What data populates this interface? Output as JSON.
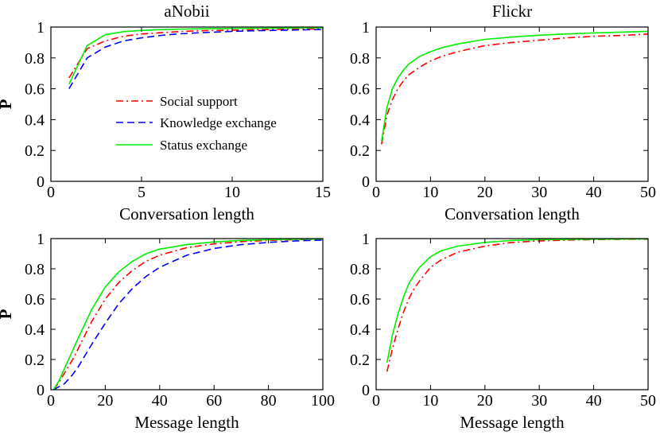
{
  "chart_data": [
    {
      "type": "line",
      "title": "aNobii",
      "xlabel": "Conversation length",
      "ylabel": "P",
      "xlim": [
        0,
        15
      ],
      "ylim": [
        0,
        1
      ],
      "xticks": [
        0,
        5,
        10,
        15
      ],
      "yticks": [
        0,
        0.2,
        0.4,
        0.6,
        0.8,
        1
      ],
      "ytick_labels": [
        "0",
        "0.2",
        "0.4",
        "0.6",
        "0.8",
        "1"
      ],
      "legend_position": "center",
      "series": [
        {
          "name": "Social support",
          "color": "#ff0000",
          "style": "dashdot",
          "x": [
            1,
            2,
            3,
            4,
            5,
            6,
            7,
            8,
            9,
            10,
            11,
            12,
            13,
            14,
            15
          ],
          "y": [
            0.67,
            0.86,
            0.91,
            0.94,
            0.955,
            0.963,
            0.97,
            0.975,
            0.978,
            0.98,
            0.982,
            0.984,
            0.986,
            0.987,
            0.988
          ]
        },
        {
          "name": "Knowledge exchange",
          "color": "#0000ff",
          "style": "dashed",
          "x": [
            1,
            2,
            3,
            4,
            5,
            6,
            7,
            8,
            9,
            10,
            11,
            12,
            13,
            14,
            15
          ],
          "y": [
            0.6,
            0.8,
            0.87,
            0.91,
            0.93,
            0.945,
            0.955,
            0.962,
            0.967,
            0.972,
            0.975,
            0.978,
            0.98,
            0.982,
            0.984
          ]
        },
        {
          "name": "Status exchange",
          "color": "#00ee00",
          "style": "solid",
          "x": [
            1,
            2,
            3,
            4,
            5,
            6,
            7,
            8,
            9,
            10,
            11,
            12,
            13,
            14,
            15
          ],
          "y": [
            0.63,
            0.88,
            0.95,
            0.97,
            0.978,
            0.983,
            0.986,
            0.988,
            0.99,
            0.991,
            0.992,
            0.993,
            0.994,
            0.995,
            0.995
          ]
        }
      ]
    },
    {
      "type": "line",
      "title": "Flickr",
      "xlabel": "Conversation length",
      "ylabel": "",
      "xlim": [
        0,
        50
      ],
      "ylim": [
        0,
        1
      ],
      "xticks": [
        0,
        10,
        20,
        30,
        40,
        50
      ],
      "yticks": [
        0,
        0.2,
        0.4,
        0.6,
        0.8,
        1
      ],
      "ytick_labels": [
        "0",
        "0.2",
        "0.4",
        "0.6",
        "0.8",
        "1"
      ],
      "series": [
        {
          "name": "Social support",
          "color": "#ff0000",
          "style": "dashdot",
          "x": [
            1,
            2,
            3,
            4,
            5,
            6,
            8,
            10,
            12,
            15,
            20,
            25,
            30,
            35,
            40,
            45,
            50
          ],
          "y": [
            0.24,
            0.43,
            0.53,
            0.6,
            0.65,
            0.69,
            0.74,
            0.78,
            0.81,
            0.84,
            0.88,
            0.9,
            0.915,
            0.93,
            0.94,
            0.945,
            0.955
          ]
        },
        {
          "name": "Knowledge exchange",
          "color": "#0000ff",
          "style": "dashed",
          "x": [],
          "y": []
        },
        {
          "name": "Status exchange",
          "color": "#00ee00",
          "style": "solid",
          "x": [
            1,
            2,
            3,
            4,
            5,
            6,
            8,
            10,
            12,
            15,
            20,
            25,
            30,
            35,
            40,
            45,
            50
          ],
          "y": [
            0.26,
            0.48,
            0.6,
            0.67,
            0.72,
            0.76,
            0.81,
            0.84,
            0.865,
            0.89,
            0.92,
            0.935,
            0.947,
            0.955,
            0.962,
            0.967,
            0.972
          ]
        }
      ]
    },
    {
      "type": "line",
      "title": "",
      "xlabel": "Message length",
      "ylabel": "P",
      "xlim": [
        0,
        100
      ],
      "ylim": [
        0,
        1
      ],
      "xticks": [
        0,
        20,
        40,
        60,
        80,
        100
      ],
      "yticks": [
        0,
        0.2,
        0.4,
        0.6,
        0.8,
        1
      ],
      "ytick_labels": [
        "0",
        "0.2",
        "0.4",
        "0.6",
        "0.8",
        "1"
      ],
      "series": [
        {
          "name": "Social support",
          "color": "#ff0000",
          "style": "dashdot",
          "x": [
            1,
            3,
            5,
            8,
            10,
            15,
            20,
            25,
            30,
            35,
            40,
            50,
            60,
            70,
            80,
            90,
            100
          ],
          "y": [
            0.0,
            0.05,
            0.11,
            0.2,
            0.27,
            0.45,
            0.6,
            0.71,
            0.79,
            0.85,
            0.89,
            0.94,
            0.965,
            0.98,
            0.988,
            0.993,
            0.996
          ]
        },
        {
          "name": "Knowledge exchange",
          "color": "#0000ff",
          "style": "dashed",
          "x": [
            1,
            3,
            5,
            8,
            10,
            15,
            20,
            25,
            30,
            35,
            40,
            50,
            60,
            70,
            80,
            90,
            100
          ],
          "y": [
            0.0,
            0.02,
            0.04,
            0.1,
            0.15,
            0.3,
            0.44,
            0.57,
            0.67,
            0.75,
            0.81,
            0.89,
            0.935,
            0.96,
            0.975,
            0.985,
            0.99
          ]
        },
        {
          "name": "Status exchange",
          "color": "#00ee00",
          "style": "solid",
          "x": [
            1,
            3,
            5,
            8,
            10,
            15,
            20,
            25,
            30,
            35,
            40,
            50,
            60,
            70,
            80,
            90,
            100
          ],
          "y": [
            0.0,
            0.06,
            0.14,
            0.26,
            0.34,
            0.53,
            0.68,
            0.78,
            0.85,
            0.9,
            0.93,
            0.96,
            0.978,
            0.988,
            0.993,
            0.996,
            0.998
          ]
        }
      ]
    },
    {
      "type": "line",
      "title": "",
      "xlabel": "Message length",
      "ylabel": "",
      "xlim": [
        0,
        50
      ],
      "ylim": [
        0,
        1
      ],
      "xticks": [
        0,
        10,
        20,
        30,
        40,
        50
      ],
      "yticks": [
        0,
        0.2,
        0.4,
        0.6,
        0.8,
        1
      ],
      "ytick_labels": [
        "0",
        "0.2",
        "0.4",
        "0.6",
        "0.8",
        "1"
      ],
      "series": [
        {
          "name": "Social support",
          "color": "#ff0000",
          "style": "dashdot",
          "x": [
            2,
            3,
            4,
            5,
            6,
            7,
            8,
            10,
            12,
            15,
            20,
            25,
            30,
            35,
            40,
            45,
            50
          ],
          "y": [
            0.12,
            0.27,
            0.4,
            0.51,
            0.6,
            0.67,
            0.72,
            0.81,
            0.86,
            0.91,
            0.95,
            0.975,
            0.985,
            0.99,
            0.993,
            0.995,
            0.996
          ]
        },
        {
          "name": "Knowledge exchange",
          "color": "#0000ff",
          "style": "dashed",
          "x": [],
          "y": []
        },
        {
          "name": "Status exchange",
          "color": "#00ee00",
          "style": "solid",
          "x": [
            2,
            3,
            4,
            5,
            6,
            7,
            8,
            10,
            12,
            15,
            20,
            25,
            30,
            35,
            40,
            45,
            50
          ],
          "y": [
            0.18,
            0.36,
            0.5,
            0.61,
            0.7,
            0.76,
            0.81,
            0.88,
            0.92,
            0.95,
            0.975,
            0.988,
            0.993,
            0.995,
            0.996,
            0.997,
            0.998
          ]
        }
      ]
    }
  ],
  "legend": {
    "entries": [
      {
        "label": "Social support",
        "color": "#ff0000",
        "style": "dashdot"
      },
      {
        "label": "Knowledge exchange",
        "color": "#0000ff",
        "style": "dashed"
      },
      {
        "label": "Status exchange",
        "color": "#00ee00",
        "style": "solid"
      }
    ]
  }
}
